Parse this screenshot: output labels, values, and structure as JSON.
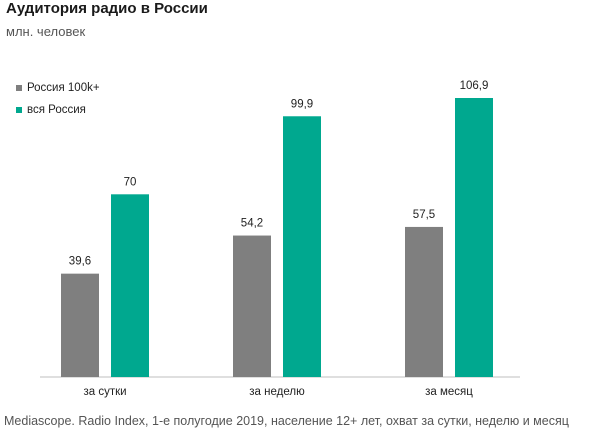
{
  "title": "Аудитория радио в России",
  "subtitle": "млн. человек",
  "source": "Mediascope. Radio Index, 1-е полугодие 2019, население 12+ лет, охват за сутки, неделю и месяц",
  "colors": {
    "series1": "#7f7f7f",
    "series2": "#00a88f",
    "axis": "#bfbfbf"
  },
  "chart_data": {
    "type": "bar",
    "categories": [
      "за сутки",
      "за неделю",
      "за месяц"
    ],
    "series": [
      {
        "name": "Россия 100k+",
        "values": [
          39.6,
          54.2,
          57.5
        ],
        "labels": [
          "39,6",
          "54,2",
          "57,5"
        ],
        "color": "#7f7f7f"
      },
      {
        "name": "вся Россия",
        "values": [
          70,
          99.9,
          106.9
        ],
        "labels": [
          "70",
          "99,9",
          "106,9"
        ],
        "color": "#00a88f"
      }
    ],
    "ylim": [
      0,
      115
    ],
    "grid": false,
    "legend_position": "top-left",
    "data_labels": true
  }
}
